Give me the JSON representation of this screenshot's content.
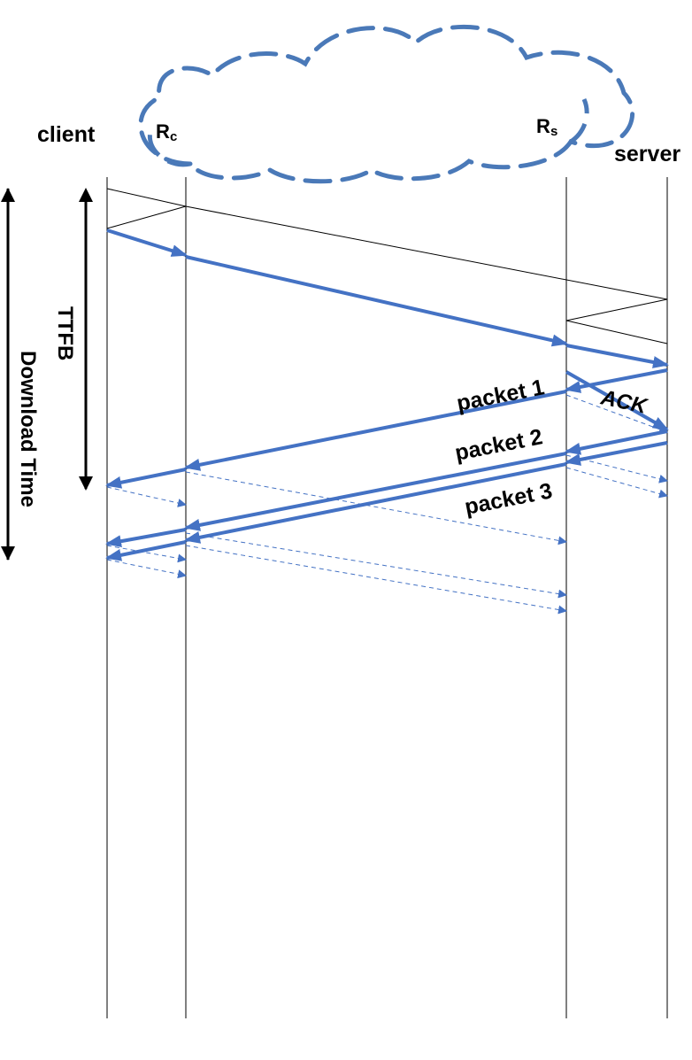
{
  "nodes": {
    "client": "client",
    "server": "server",
    "rc_main": "R",
    "rc_sub": "c",
    "rs_main": "R",
    "rs_sub": "s"
  },
  "labels": {
    "ttfb": "TTFB",
    "download_time": "Download Time",
    "packet1": "packet 1",
    "packet2": "packet 2",
    "packet3": "packet 3",
    "ack": "ACK"
  },
  "colors": {
    "data_arrow": "#4472c4",
    "handshake": "#000000",
    "cloud_outline": "#4a79b8"
  }
}
